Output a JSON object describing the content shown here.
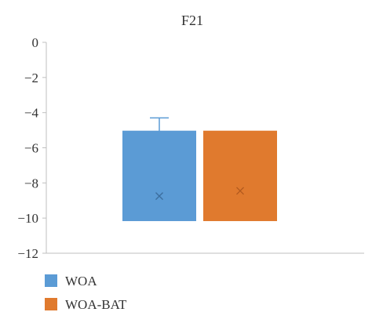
{
  "chart_data": {
    "type": "boxplot",
    "title": "F21",
    "xlabel": "",
    "ylabel": "",
    "ylim": [
      -12,
      0
    ],
    "yticks": [
      0,
      -2,
      -4,
      -6,
      -8,
      -10,
      -12
    ],
    "ytick_labels": [
      "0",
      "−2",
      "−4",
      "−6",
      "−8",
      "−10",
      "−12"
    ],
    "grid": false,
    "legend_position": "bottom-left",
    "series": [
      {
        "name": "WOA",
        "color": "#5b9bd5",
        "q1": -10.15,
        "q3": -5.05,
        "whisker_low": -10.15,
        "whisker_high": -4.3,
        "mean": -8.75
      },
      {
        "name": "WOA-BAT",
        "color": "#e07a2e",
        "q1": -10.15,
        "q3": -5.05,
        "whisker_low": -10.15,
        "whisker_high": -5.05,
        "mean": -8.45
      }
    ]
  }
}
